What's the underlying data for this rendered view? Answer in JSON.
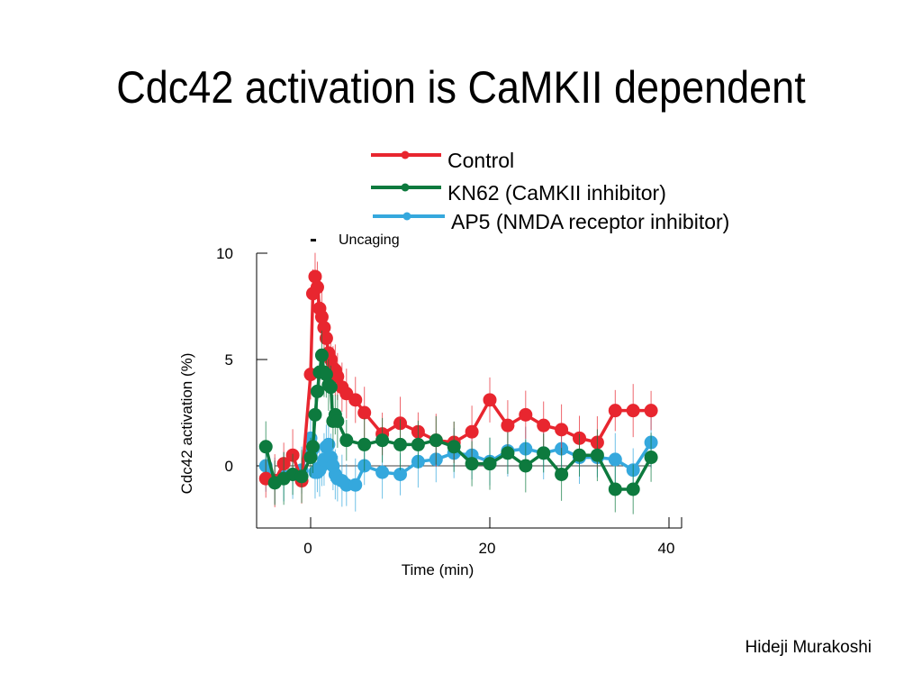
{
  "slide": {
    "title": "Cdc42 activation is CaMKII dependent",
    "author": "Hideji Murakoshi"
  },
  "chart_data": {
    "type": "line",
    "xlabel": "Time (min)",
    "ylabel": "Cdc42 activation (%)",
    "xlim": [
      -6,
      40
    ],
    "ylim": [
      -3,
      10
    ],
    "xticks": [
      0,
      20,
      40
    ],
    "yticks": [
      0,
      5,
      10
    ],
    "annotation": {
      "text": "Uncaging",
      "marker": "-",
      "x": 0
    },
    "grid": false,
    "legend": "top",
    "series": [
      {
        "name": "Control",
        "color": "#e8262f",
        "x": [
          -5,
          -4,
          -3,
          -2,
          -1,
          0,
          0.25,
          0.5,
          0.75,
          1.0,
          1.25,
          1.5,
          1.75,
          2.0,
          2.25,
          2.5,
          2.75,
          3.0,
          3.5,
          4.0,
          5.0,
          6.0,
          8.0,
          10.0,
          12.0,
          14.0,
          16.0,
          18.0,
          20.0,
          22.0,
          24.0,
          26.0,
          28.0,
          30.0,
          32.0,
          34.0,
          36.0,
          38.0
        ],
        "y": [
          -0.6,
          -0.7,
          0.1,
          0.5,
          -0.7,
          4.3,
          8.1,
          8.9,
          8.4,
          7.4,
          7.0,
          6.5,
          6.0,
          5.3,
          5.0,
          4.6,
          4.5,
          4.2,
          3.7,
          3.4,
          3.1,
          2.5,
          1.5,
          2.0,
          1.6,
          1.2,
          1.1,
          1.6,
          3.1,
          1.9,
          2.4,
          1.9,
          1.7,
          1.3,
          1.1,
          2.6,
          2.6,
          2.6
        ]
      },
      {
        "name": "KN62  (CaMKII inhibitor)",
        "color": "#0d7a3e",
        "x": [
          -5,
          -4,
          -3,
          -2,
          -1,
          0,
          0.25,
          0.5,
          0.75,
          1.0,
          1.25,
          1.5,
          1.75,
          2.0,
          2.25,
          2.5,
          2.75,
          3.0,
          4.0,
          6.0,
          8.0,
          10.0,
          12.0,
          14.0,
          16.0,
          18.0,
          20.0,
          22.0,
          24.0,
          26.0,
          28.0,
          30.0,
          32.0,
          34.0,
          36.0,
          38.0
        ],
        "y": [
          0.9,
          -0.8,
          -0.6,
          -0.4,
          -0.5,
          0.4,
          0.9,
          2.4,
          3.5,
          4.4,
          5.2,
          4.4,
          4.3,
          3.8,
          3.7,
          2.1,
          2.4,
          2.1,
          1.2,
          1.0,
          1.2,
          1.0,
          1.0,
          1.2,
          0.9,
          0.1,
          0.1,
          0.6,
          0.0,
          0.6,
          -0.4,
          0.5,
          0.5,
          -1.1,
          -1.1,
          0.4
        ]
      },
      {
        "name": "AP5 (NMDA receptor inhibitor)",
        "color": "#35a8dd",
        "x": [
          -5,
          -4,
          -3,
          -2,
          -1,
          0,
          0.25,
          0.5,
          0.75,
          1.0,
          1.25,
          1.5,
          1.75,
          2.0,
          2.25,
          2.5,
          2.75,
          3.0,
          3.5,
          4.0,
          5.0,
          6.0,
          8.0,
          10.0,
          12.0,
          14.0,
          16.0,
          18.0,
          20.0,
          22.0,
          24.0,
          26.0,
          28.0,
          30.0,
          32.0,
          34.0,
          36.0,
          38.0
        ],
        "y": [
          0.0,
          -0.7,
          -0.5,
          -0.4,
          -0.2,
          1.3,
          0.8,
          -0.3,
          -0.3,
          -0.2,
          0.0,
          0.3,
          0.9,
          1.0,
          0.4,
          0.0,
          -0.4,
          -0.6,
          -0.7,
          -0.9,
          -0.9,
          0.0,
          -0.3,
          -0.4,
          0.2,
          0.3,
          0.6,
          0.5,
          0.2,
          0.7,
          0.8,
          0.6,
          0.8,
          0.4,
          0.4,
          0.3,
          -0.2,
          1.1
        ]
      }
    ]
  }
}
